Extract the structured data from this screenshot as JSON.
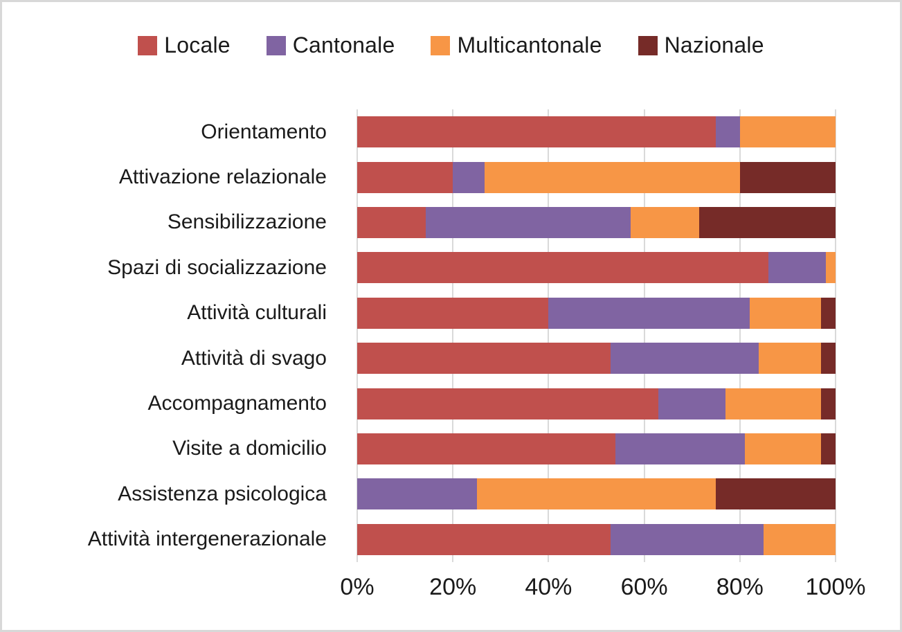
{
  "chart_data": {
    "type": "bar",
    "orientation": "horizontal",
    "stacked": true,
    "title": "",
    "categories": [
      "Orientamento",
      "Attivazione relazionale",
      "Sensibilizzazione",
      "Spazi di socializzazione",
      "Attività culturali",
      "Attività di svago",
      "Accompagnamento",
      "Visite a domicilio",
      "Assistenza psicologica",
      "Attività intergenerazionale"
    ],
    "series": [
      {
        "name": "Locale",
        "color": "#C0504D",
        "values": [
          75,
          20,
          14.3,
          86,
          40,
          53,
          63,
          54,
          0,
          53
        ]
      },
      {
        "name": "Cantonale",
        "color": "#8064A2",
        "values": [
          5,
          6.7,
          42.9,
          12,
          42,
          31,
          14,
          27,
          25,
          32
        ]
      },
      {
        "name": "Multicantonale",
        "color": "#F79646",
        "values": [
          20,
          53.3,
          14.3,
          2,
          15,
          13,
          20,
          16,
          50,
          15
        ]
      },
      {
        "name": "Nazionale",
        "color": "#762B28",
        "values": [
          0,
          20,
          28.5,
          0,
          3,
          3,
          3,
          3,
          25,
          0
        ]
      }
    ],
    "x_ticks": [
      {
        "label": "0%",
        "value": 0
      },
      {
        "label": "20%",
        "value": 20
      },
      {
        "label": "40%",
        "value": 40
      },
      {
        "label": "60%",
        "value": 60
      },
      {
        "label": "80%",
        "value": 80
      },
      {
        "label": "100%",
        "value": 100
      }
    ],
    "xlim": [
      0,
      100
    ],
    "legend_position": "top",
    "grid": "vertical",
    "gridline_color": "#D9D9D9",
    "background_color": "#FFFFFF",
    "border_color": "#D8D8D8"
  }
}
